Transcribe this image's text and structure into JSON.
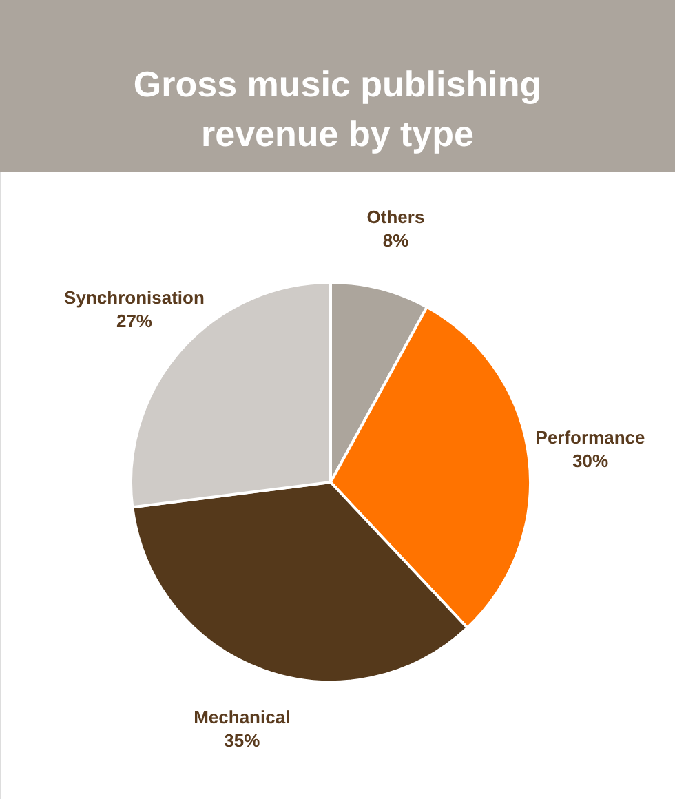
{
  "chart_data": {
    "type": "pie",
    "title": "Gross music publishing revenue by type",
    "categories": [
      "Others",
      "Performance",
      "Mechanical",
      "Synchronisation"
    ],
    "values": [
      8,
      30,
      35,
      27
    ],
    "colors": [
      "#aca59c",
      "#ff7300",
      "#55391b",
      "#cfcbc7"
    ],
    "value_labels": [
      "8%",
      "30%",
      "35%",
      "27%"
    ],
    "legend": false
  }
}
